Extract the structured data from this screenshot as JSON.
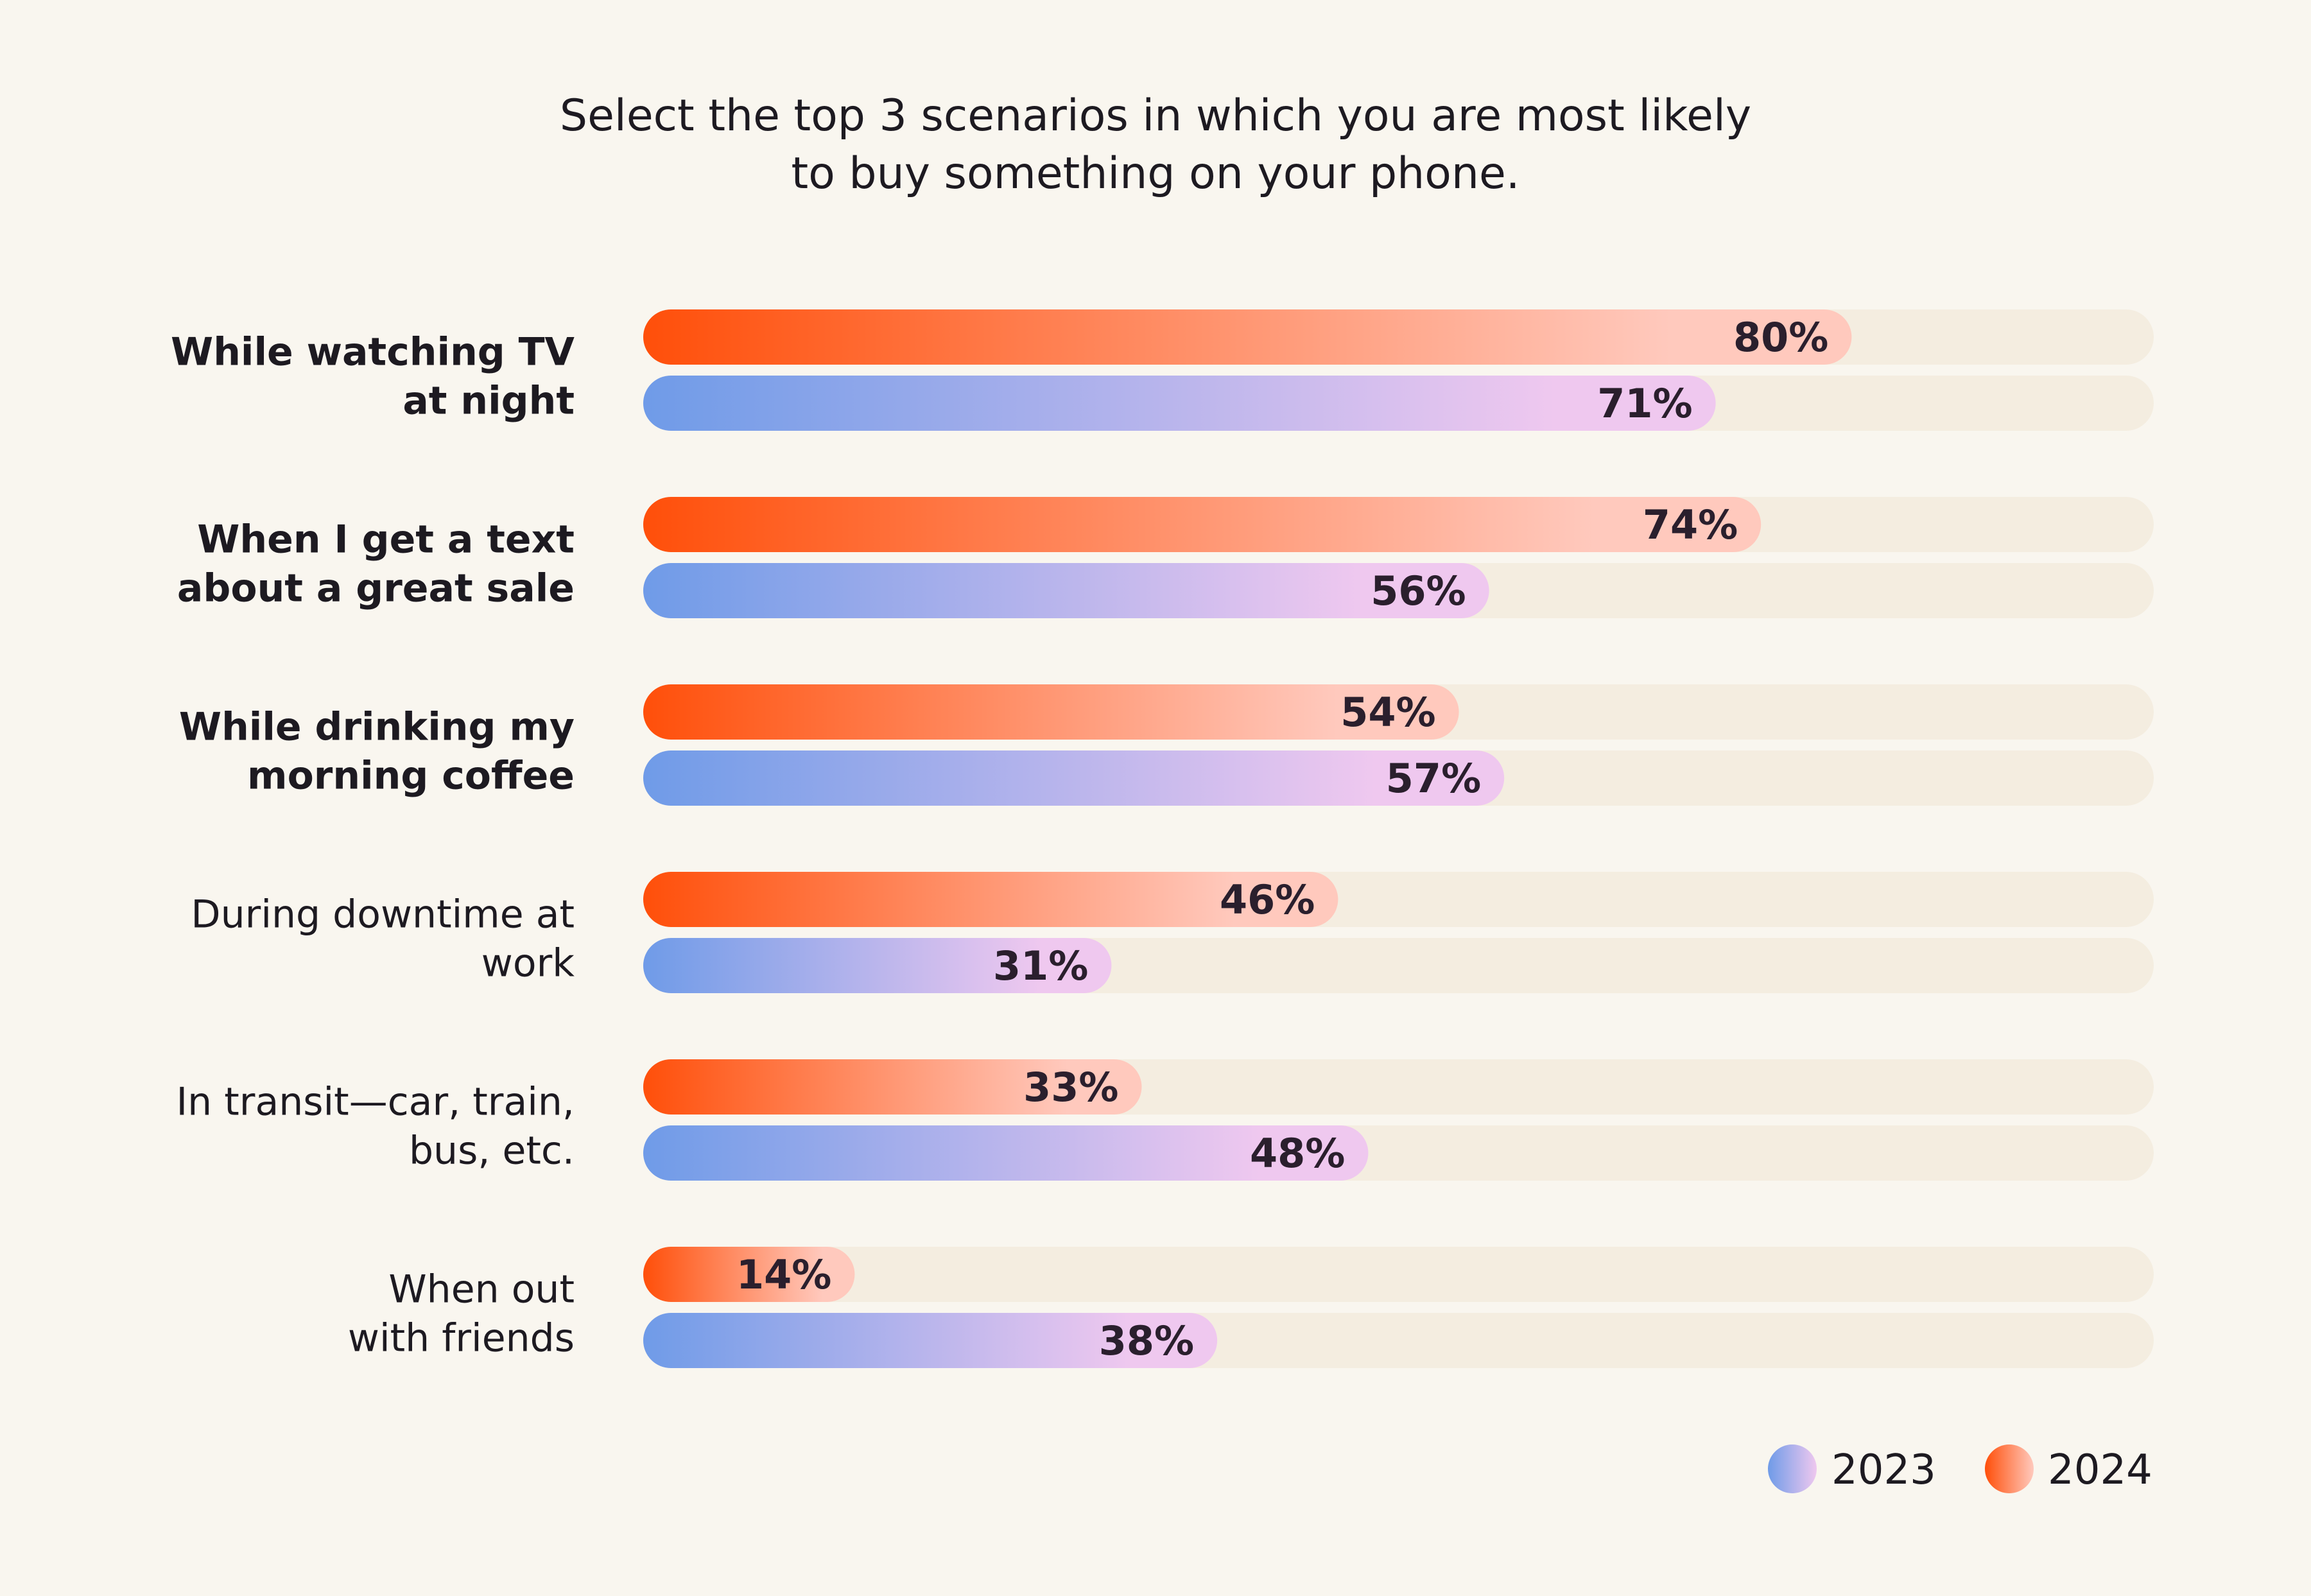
{
  "chart_data": {
    "type": "bar",
    "orientation": "horizontal",
    "title_lines": [
      "Select the top 3 scenarios in which you are most likely",
      "to buy something on your phone."
    ],
    "categories": [
      {
        "lines": [
          "While watching TV",
          "at night"
        ],
        "bold": true
      },
      {
        "lines": [
          "When I get a text",
          "about a great sale"
        ],
        "bold": true
      },
      {
        "lines": [
          "While drinking my",
          "morning coffee"
        ],
        "bold": true
      },
      {
        "lines": [
          "During downtime at",
          "work"
        ],
        "bold": false
      },
      {
        "lines": [
          "In transit—car, train,",
          "bus, etc."
        ],
        "bold": false
      },
      {
        "lines": [
          "When out",
          "with friends"
        ],
        "bold": false
      }
    ],
    "series": [
      {
        "name": "2024",
        "values": [
          80,
          74,
          54,
          46,
          33,
          14
        ],
        "labels": [
          "80%",
          "74%",
          "54%",
          "46%",
          "33%",
          "14%"
        ]
      },
      {
        "name": "2023",
        "values": [
          71,
          56,
          57,
          31,
          48,
          38
        ],
        "labels": [
          "71%",
          "56%",
          "57%",
          "31%",
          "48%",
          "38%"
        ]
      }
    ],
    "xlim": [
      0,
      100
    ],
    "legend_position": "bottom-right",
    "legend_order": [
      "2023",
      "2024"
    ],
    "colors": {
      "2024_start": "#ff4f0a",
      "2024_end": "#ffc9bd",
      "2023_start": "#6f9be8",
      "2023_end": "#efc8ef",
      "track": "#f4ede0",
      "background": "#f9f6ef"
    }
  }
}
